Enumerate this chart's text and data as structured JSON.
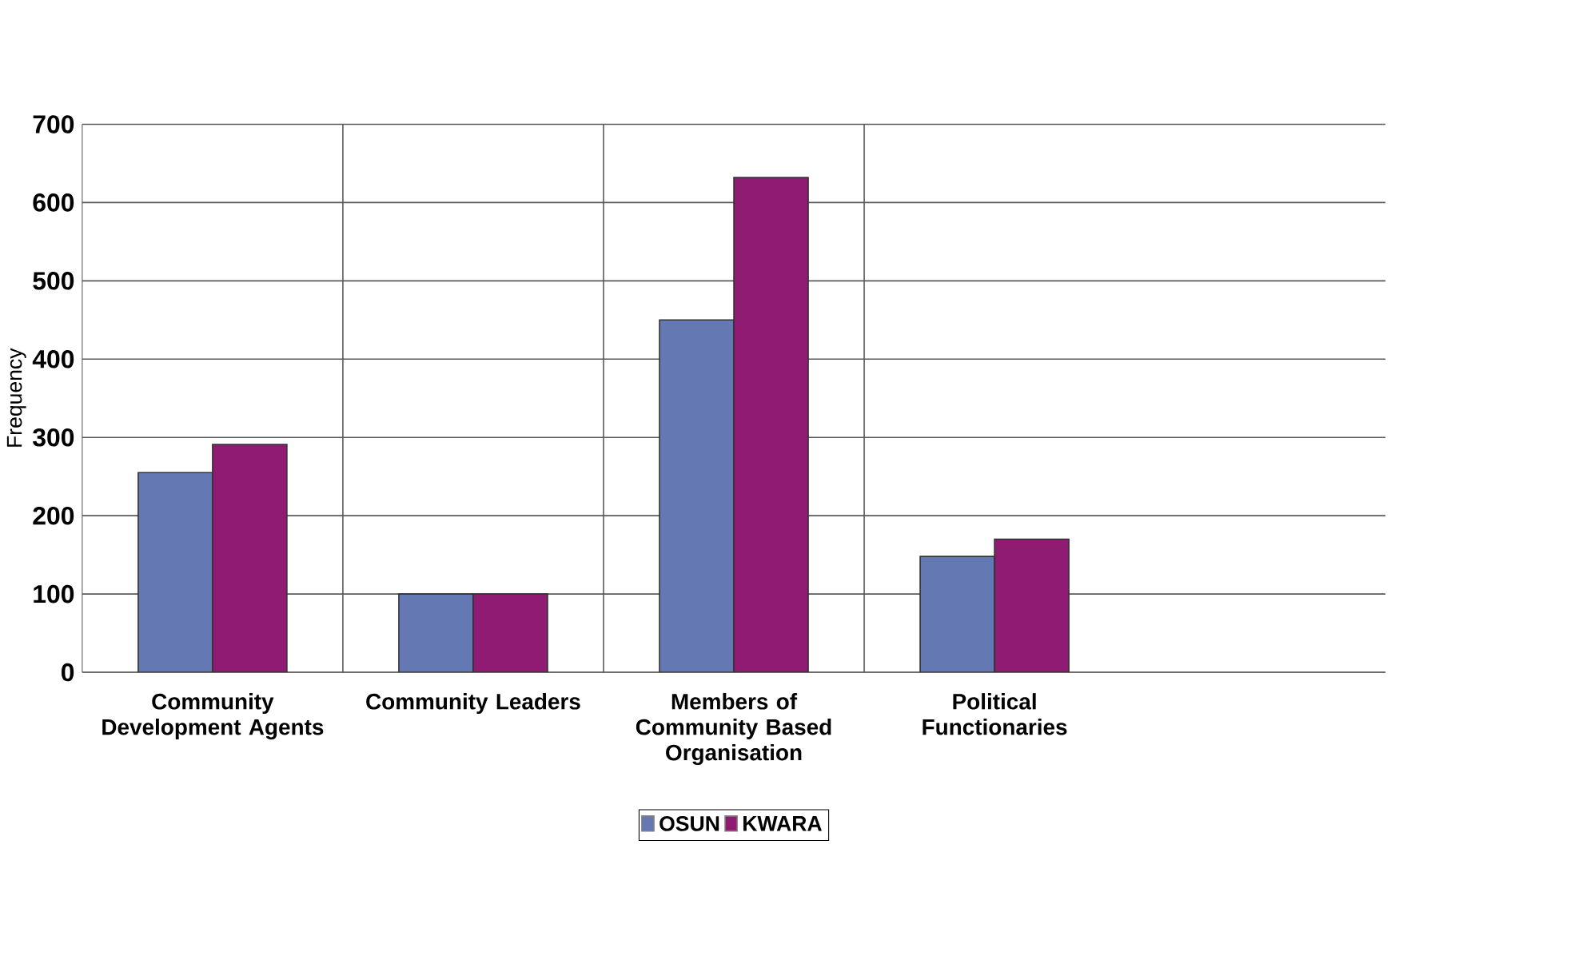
{
  "chart_data": {
    "type": "bar",
    "ylabel": "Frequency",
    "categories": [
      "Community Development Agents",
      "Community Leaders",
      "Members of Community Based Organisation",
      "Political Functionaries"
    ],
    "series": [
      {
        "name": "OSUN",
        "color": "#6479b4",
        "values": [
          255,
          100,
          450,
          148
        ]
      },
      {
        "name": "KWARA",
        "color": "#8f1b73",
        "values": [
          291,
          100,
          632,
          170
        ]
      }
    ],
    "ylim": [
      0,
      700
    ],
    "yticks": [
      0,
      100,
      200,
      300,
      400,
      500,
      600,
      700
    ],
    "grid": "y",
    "legend": "bottom"
  }
}
